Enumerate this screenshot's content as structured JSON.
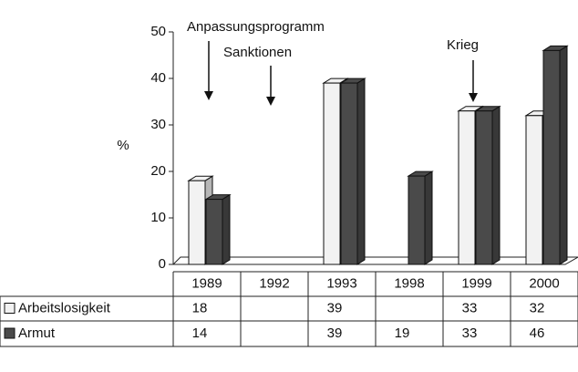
{
  "chart_data": {
    "type": "bar",
    "y_label": "%",
    "categories": [
      "1989",
      "1992",
      "1993",
      "1998",
      "1999",
      "2000"
    ],
    "series": [
      {
        "name": "Arbeitslosigkeit",
        "color": "#f2f2f2",
        "values": [
          18,
          null,
          39,
          null,
          33,
          32
        ]
      },
      {
        "name": "Armut",
        "color": "#4a4a4a",
        "values": [
          14,
          null,
          39,
          19,
          33,
          46
        ]
      }
    ],
    "ylim": [
      0,
      50
    ],
    "yticks": [
      0,
      10,
      20,
      30,
      40,
      50
    ],
    "annotations": [
      {
        "label": "Anpassungsprogramm",
        "category": "1989"
      },
      {
        "label": "Sanktionen",
        "category": "1992"
      },
      {
        "label": "Krieg",
        "category": "1999"
      }
    ]
  }
}
